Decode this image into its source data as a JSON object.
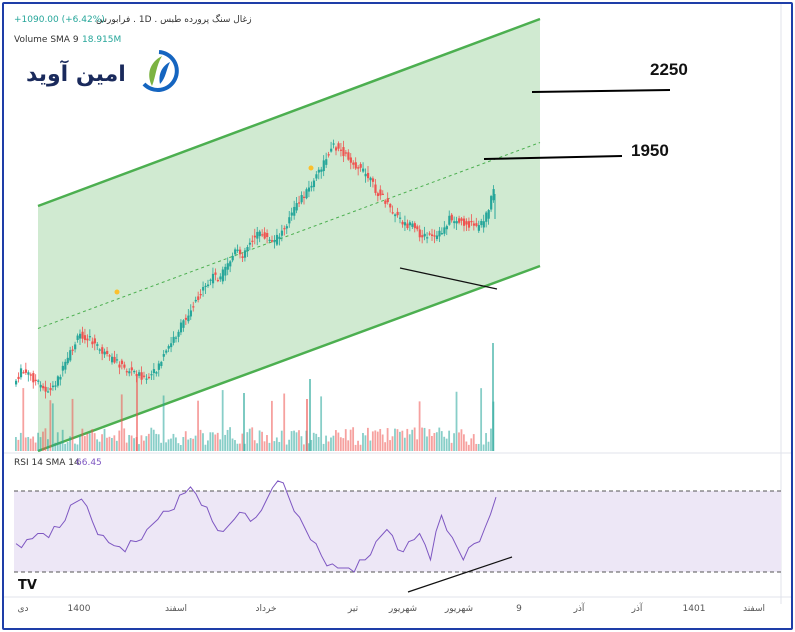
{
  "header": {
    "title": "زغال سنگ پرورده طبس . 1D . فرابورس",
    "change": "+1090.00 (+6.42%)",
    "volume_label": "Volume SMA 9",
    "volume_value": "18.915M"
  },
  "rsi": {
    "label": "RSI 14 SMA 14",
    "value": "66.45"
  },
  "logo": {
    "text": "امین آوید"
  },
  "levels": {
    "upper": "2250",
    "lower": "1950"
  },
  "tv_logo": "TV",
  "colors": {
    "up": "#26a69a",
    "down": "#ef5350",
    "channel_line": "#4caf50",
    "channel_fill": "#c8e6c9",
    "rsi_line": "#7e57c2",
    "rsi_band": "#ede7f6"
  },
  "chart_data": {
    "type": "candlestick",
    "x_ticks": [
      "دی",
      "1400",
      "اسفند",
      "خرداد",
      "تیر",
      "شهریور",
      "شهریور",
      "9",
      "آذر",
      "آذر",
      "1401",
      "اسفند"
    ],
    "close_path": [
      10,
      12,
      11,
      9,
      7,
      6,
      8,
      10,
      13,
      15,
      14,
      12,
      10,
      8,
      7,
      5,
      4,
      3,
      1,
      2,
      4,
      6,
      8,
      10,
      12,
      14,
      15,
      17,
      16,
      18,
      20,
      19,
      21,
      22,
      21,
      19,
      20,
      22,
      24,
      26,
      27,
      29,
      31,
      34,
      33,
      31,
      29,
      27,
      25,
      22,
      20,
      17,
      15,
      13,
      12,
      10,
      9,
      8,
      9,
      11,
      10,
      9,
      8,
      7,
      9,
      13
    ],
    "price_levels": [
      2250,
      1950
    ],
    "rsi_values": [
      44,
      46,
      49,
      47,
      52,
      63,
      66,
      55,
      48,
      43,
      40,
      45,
      51,
      56,
      60,
      68,
      72,
      63,
      55,
      50,
      56,
      59,
      57,
      66,
      75,
      67,
      57,
      46,
      38,
      34,
      32,
      30,
      36,
      45,
      51,
      41,
      45,
      49,
      36,
      58,
      47,
      36,
      44,
      52,
      67
    ],
    "rsi_levels": [
      70,
      30
    ],
    "channel": "ascending"
  }
}
